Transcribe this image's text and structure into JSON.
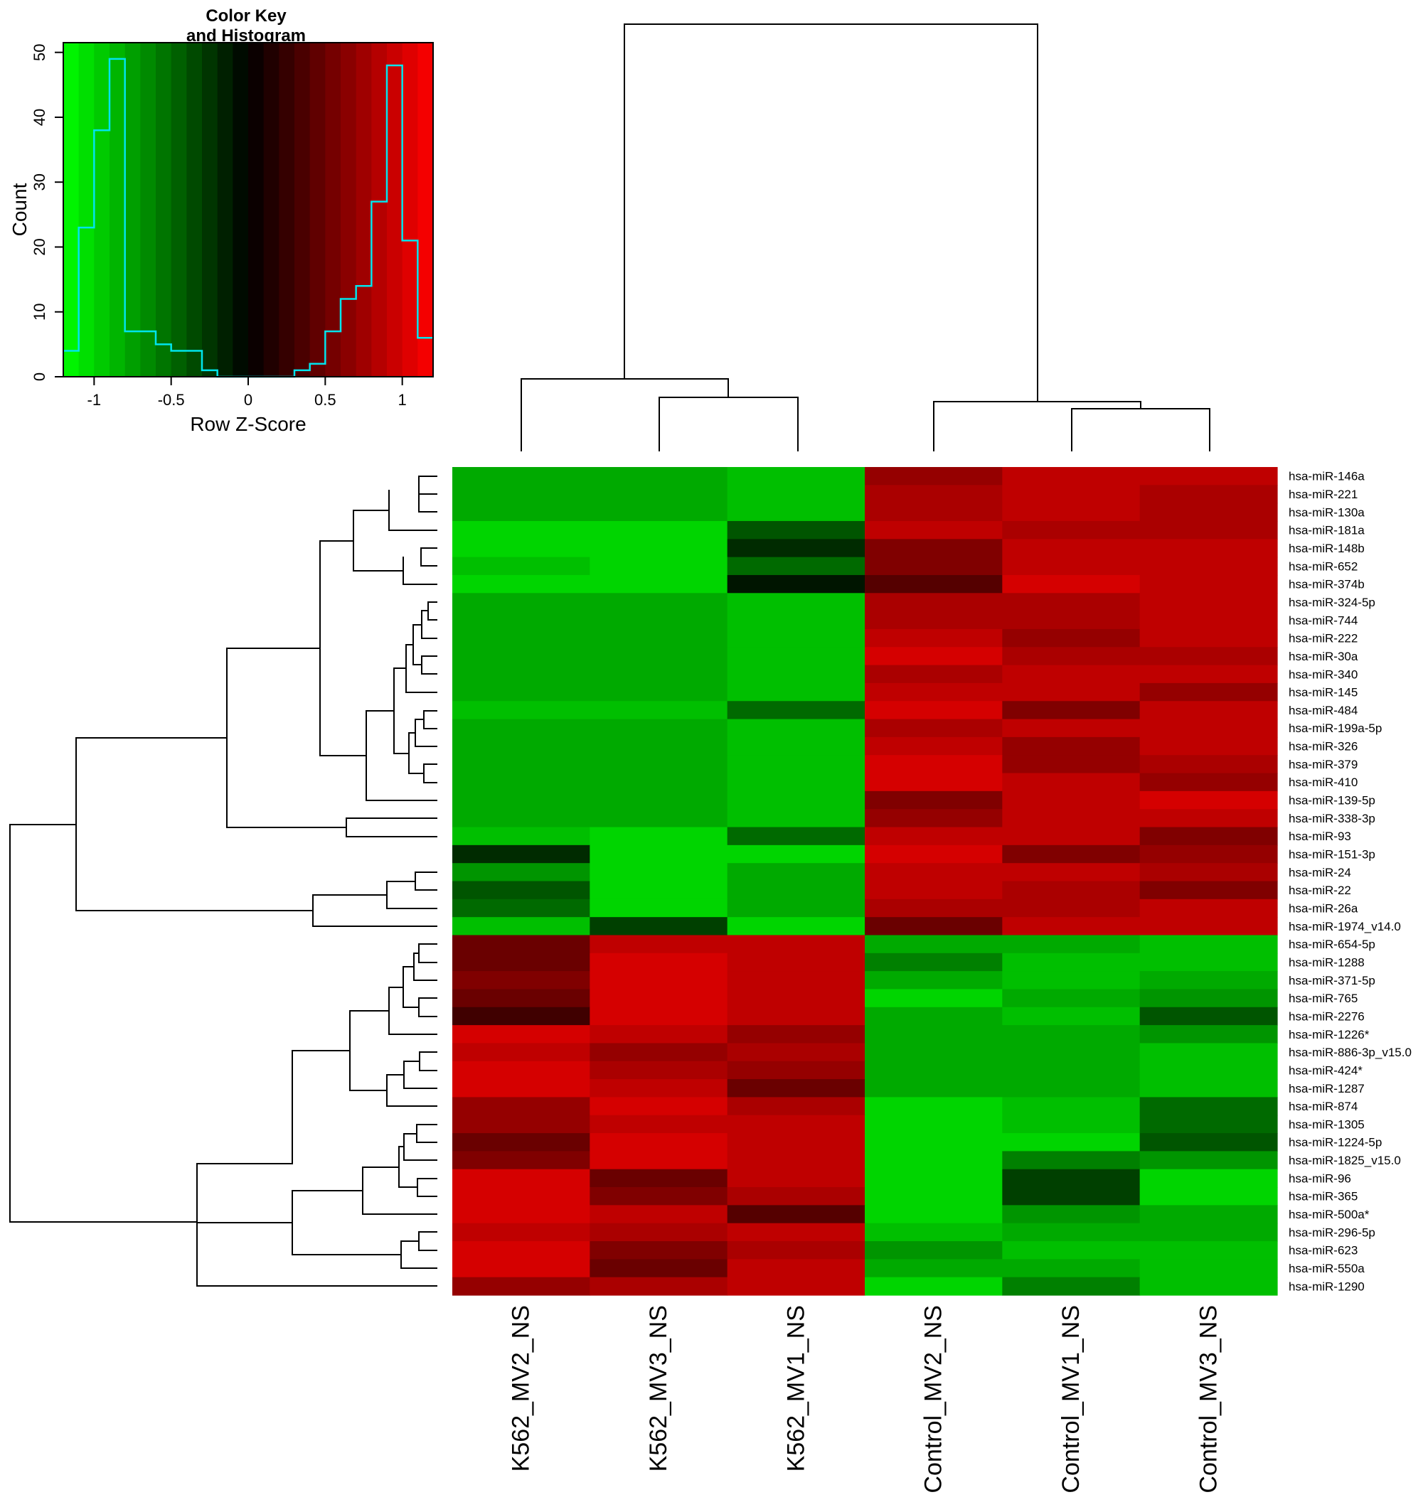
{
  "color_key": {
    "title_line1": "Color Key",
    "title_line2": "and Histogram",
    "xlabel": "Row Z-Score",
    "ylabel": "Count",
    "xticks": [
      -1,
      -0.5,
      0,
      0.5,
      1
    ],
    "xtick_labels": [
      "-1",
      "-0.5",
      "0",
      "0.5",
      "1"
    ],
    "yticks": [
      0,
      10,
      20,
      30,
      40,
      50
    ],
    "ytick_labels": [
      "0",
      "10",
      "20",
      "30",
      "40",
      "50"
    ],
    "xlim": [
      -1.2,
      1.2
    ],
    "ylim": [
      0,
      51.5
    ],
    "colors": {
      "low": "#00ff00",
      "mid": "#000000",
      "high": "#ff0000",
      "histogram_line": "#00e5ee"
    },
    "histogram": {
      "bin_edges": [
        -1.2,
        -1.1,
        -1.0,
        -0.9,
        -0.8,
        -0.7,
        -0.6,
        -0.5,
        -0.4,
        -0.3,
        -0.2,
        -0.1,
        0,
        0.1,
        0.2,
        0.3,
        0.4,
        0.5,
        0.6,
        0.7,
        0.8,
        0.9,
        1.0,
        1.1,
        1.2
      ],
      "counts": [
        4,
        23,
        38,
        49,
        7,
        7,
        5,
        4,
        4,
        1,
        0,
        0,
        0,
        0,
        0,
        1,
        2,
        7,
        12,
        14,
        27,
        48,
        21,
        6
      ]
    }
  },
  "chart_data": {
    "type": "heatmap",
    "value_label": "Row Z-Score",
    "columns": [
      "K562_MV2_NS",
      "K562_MV3_NS",
      "K562_MV1_NS",
      "Control_MV2_NS",
      "Control_MV1_NS",
      "Control_MV3_NS"
    ],
    "rows": [
      "hsa-miR-146a",
      "hsa-miR-221",
      "hsa-miR-130a",
      "hsa-miR-181a",
      "hsa-miR-148b",
      "hsa-miR-652",
      "hsa-miR-374b",
      "hsa-miR-324-5p",
      "hsa-miR-744",
      "hsa-miR-222",
      "hsa-miR-30a",
      "hsa-miR-340",
      "hsa-miR-145",
      "hsa-miR-484",
      "hsa-miR-199a-5p",
      "hsa-miR-326",
      "hsa-miR-379",
      "hsa-miR-410",
      "hsa-miR-139-5p",
      "hsa-miR-338-3p",
      "hsa-miR-93",
      "hsa-miR-151-3p",
      "hsa-miR-24",
      "hsa-miR-22",
      "hsa-miR-26a",
      "hsa-miR-1974_v14.0",
      "hsa-miR-654-5p",
      "hsa-miR-1288",
      "hsa-miR-371-5p",
      "hsa-miR-765",
      "hsa-miR-2276",
      "hsa-miR-1226*",
      "hsa-miR-886-3p_v15.0",
      "hsa-miR-424*",
      "hsa-miR-1287",
      "hsa-miR-874",
      "hsa-miR-1305",
      "hsa-miR-1224-5p",
      "hsa-miR-1825_v15.0",
      "hsa-miR-96",
      "hsa-miR-365",
      "hsa-miR-500a*",
      "hsa-miR-296-5p",
      "hsa-miR-623",
      "hsa-miR-550a",
      "hsa-miR-1290"
    ],
    "values": [
      [
        -0.8,
        -0.8,
        -0.9,
        0.7,
        0.9,
        0.9
      ],
      [
        -0.8,
        -0.8,
        -0.9,
        0.8,
        0.9,
        0.8
      ],
      [
        -0.8,
        -0.8,
        -0.9,
        0.8,
        0.9,
        0.8
      ],
      [
        -1.0,
        -1.0,
        -0.4,
        0.9,
        0.8,
        0.8
      ],
      [
        -1.0,
        -1.0,
        -0.2,
        0.6,
        0.9,
        0.9
      ],
      [
        -0.9,
        -1.0,
        -0.5,
        0.6,
        0.9,
        0.9
      ],
      [
        -1.0,
        -1.0,
        -0.1,
        0.4,
        1.0,
        0.9
      ],
      [
        -0.8,
        -0.8,
        -0.9,
        0.8,
        0.8,
        0.9
      ],
      [
        -0.8,
        -0.8,
        -0.9,
        0.8,
        0.8,
        0.9
      ],
      [
        -0.8,
        -0.8,
        -0.9,
        0.9,
        0.7,
        0.9
      ],
      [
        -0.8,
        -0.8,
        -0.9,
        1.0,
        0.8,
        0.8
      ],
      [
        -0.8,
        -0.8,
        -0.9,
        0.8,
        0.9,
        0.9
      ],
      [
        -0.8,
        -0.8,
        -0.9,
        0.9,
        0.9,
        0.7
      ],
      [
        -0.9,
        -0.9,
        -0.5,
        1.0,
        0.6,
        0.9
      ],
      [
        -0.8,
        -0.8,
        -0.9,
        0.8,
        0.9,
        0.9
      ],
      [
        -0.8,
        -0.8,
        -0.9,
        0.9,
        0.7,
        0.9
      ],
      [
        -0.8,
        -0.8,
        -0.9,
        1.0,
        0.7,
        0.8
      ],
      [
        -0.8,
        -0.8,
        -0.9,
        1.0,
        0.9,
        0.7
      ],
      [
        -0.8,
        -0.8,
        -0.9,
        0.6,
        0.9,
        1.0
      ],
      [
        -0.8,
        -0.8,
        -0.9,
        0.7,
        0.9,
        0.9
      ],
      [
        -0.9,
        -1.0,
        -0.5,
        0.9,
        0.9,
        0.6
      ],
      [
        -0.2,
        -1.0,
        -1.0,
        1.0,
        0.6,
        0.7
      ],
      [
        -0.7,
        -1.0,
        -0.8,
        0.9,
        0.9,
        0.8
      ],
      [
        -0.4,
        -1.0,
        -0.8,
        0.9,
        0.8,
        0.6
      ],
      [
        -0.5,
        -1.0,
        -0.8,
        0.8,
        0.8,
        0.9
      ],
      [
        -0.9,
        -0.3,
        -1.0,
        0.5,
        0.9,
        0.9
      ],
      [
        0.5,
        0.9,
        0.9,
        -0.8,
        -0.8,
        -0.9
      ],
      [
        0.5,
        1.0,
        0.9,
        -0.6,
        -0.9,
        -0.9
      ],
      [
        0.6,
        1.0,
        0.9,
        -0.8,
        -0.9,
        -0.8
      ],
      [
        0.5,
        1.0,
        0.9,
        -1.0,
        -0.8,
        -0.7
      ],
      [
        0.3,
        1.0,
        0.9,
        -0.8,
        -0.9,
        -0.4
      ],
      [
        1.0,
        0.9,
        0.7,
        -0.8,
        -0.8,
        -0.7
      ],
      [
        0.9,
        0.7,
        0.8,
        -0.8,
        -0.8,
        -0.9
      ],
      [
        1.0,
        0.8,
        0.7,
        -0.8,
        -0.8,
        -0.9
      ],
      [
        1.0,
        0.9,
        0.5,
        -0.8,
        -0.8,
        -0.9
      ],
      [
        0.7,
        1.0,
        0.8,
        -1.0,
        -0.9,
        -0.5
      ],
      [
        0.7,
        0.9,
        0.9,
        -1.0,
        -0.9,
        -0.5
      ],
      [
        0.5,
        1.0,
        0.9,
        -1.0,
        -1.0,
        -0.4
      ],
      [
        0.6,
        1.0,
        0.9,
        -1.0,
        -0.6,
        -0.7
      ],
      [
        1.0,
        0.5,
        0.9,
        -1.0,
        -0.3,
        -1.0
      ],
      [
        1.0,
        0.6,
        0.8,
        -1.0,
        -0.3,
        -1.0
      ],
      [
        1.0,
        0.9,
        0.4,
        -1.0,
        -0.7,
        -0.8
      ],
      [
        0.9,
        0.8,
        0.9,
        -0.9,
        -0.8,
        -0.8
      ],
      [
        1.0,
        0.6,
        0.8,
        -0.7,
        -0.9,
        -0.9
      ],
      [
        1.0,
        0.5,
        0.9,
        -0.8,
        -0.8,
        -0.9
      ],
      [
        0.7,
        0.8,
        0.9,
        -1.0,
        -0.6,
        -0.9
      ]
    ],
    "xlim": [
      -1.2,
      1.2
    ]
  }
}
